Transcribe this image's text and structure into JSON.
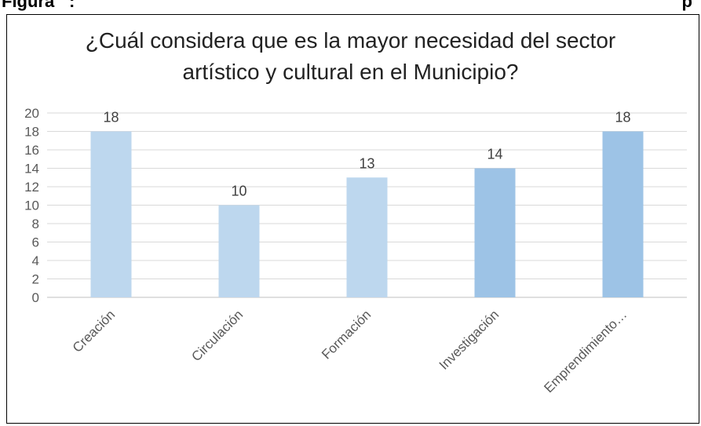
{
  "caption": {
    "prefix": "Figura",
    "separator": ":",
    "suffix": "p"
  },
  "chart_data": {
    "type": "bar",
    "title_line1": "¿Cuál considera que es la mayor necesidad del sector",
    "title_line2": "artístico y cultural en el Municipio?",
    "categories": [
      "Creación",
      "Circulación",
      "Formación",
      "Investigación",
      "Emprendimiento…"
    ],
    "values": [
      18,
      10,
      13,
      14,
      18
    ],
    "bar_colors": [
      "#bdd7ee",
      "#bdd7ee",
      "#bdd7ee",
      "#9dc3e6",
      "#9dc3e6"
    ],
    "ylim": [
      0,
      20
    ],
    "y_ticks": [
      0,
      2,
      4,
      6,
      8,
      10,
      12,
      14,
      16,
      18,
      20
    ],
    "grid": true,
    "xlabel": "",
    "ylabel": ""
  },
  "colors": {
    "gridline": "#d9d9d9",
    "axis_text": "#595959",
    "data_label": "#404040",
    "frame": "#000000"
  }
}
